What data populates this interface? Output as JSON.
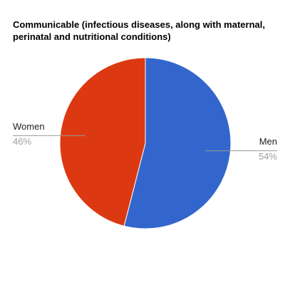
{
  "chart_data": {
    "type": "pie",
    "title": "Communicable (infectious diseases, along with maternal, perinatal and nutritional conditions)",
    "categories": [
      "Men",
      "Women"
    ],
    "values": [
      54,
      46
    ],
    "value_labels": [
      "54%",
      "46%"
    ],
    "colors": [
      "#3366cc",
      "#dc3912"
    ]
  }
}
